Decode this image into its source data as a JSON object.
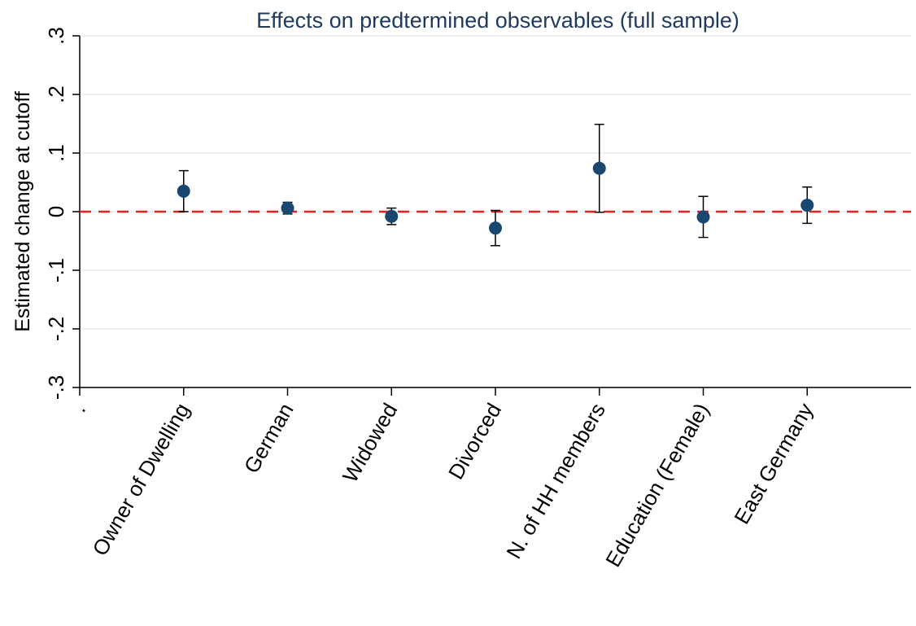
{
  "chart_data": {
    "type": "errorbar",
    "title": "Effects on predtermined observables (full sample)",
    "ylabel": "Estimated change at cutoff",
    "categories": [
      ".",
      "Owner of Dwelling",
      "German",
      "Widowed",
      "Divorced",
      "N. of HH members",
      "Education (Female)",
      "East Germany"
    ],
    "series": [
      {
        "color": "#1a476f",
        "values": [
          null,
          0.035,
          0.006,
          -0.008,
          -0.028,
          0.074,
          -0.009,
          0.011
        ],
        "errors": [
          null,
          0.035,
          0.01,
          0.014,
          0.03,
          0.075,
          0.035,
          0.031
        ]
      }
    ],
    "ylim": [
      -0.3,
      0.3
    ],
    "yticks": [
      {
        "value": -0.3,
        "label": "-.3"
      },
      {
        "value": -0.2,
        "label": "-.2"
      },
      {
        "value": -0.1,
        "label": "-.1"
      },
      0,
      {
        "value": 0.1,
        "label": ".1"
      },
      {
        "value": 0.2,
        "label": ".2"
      },
      {
        "value": 0.3,
        "label": ".3"
      }
    ],
    "grid": true,
    "reference_line": {
      "value": 0,
      "color": "#e8201f"
    }
  }
}
